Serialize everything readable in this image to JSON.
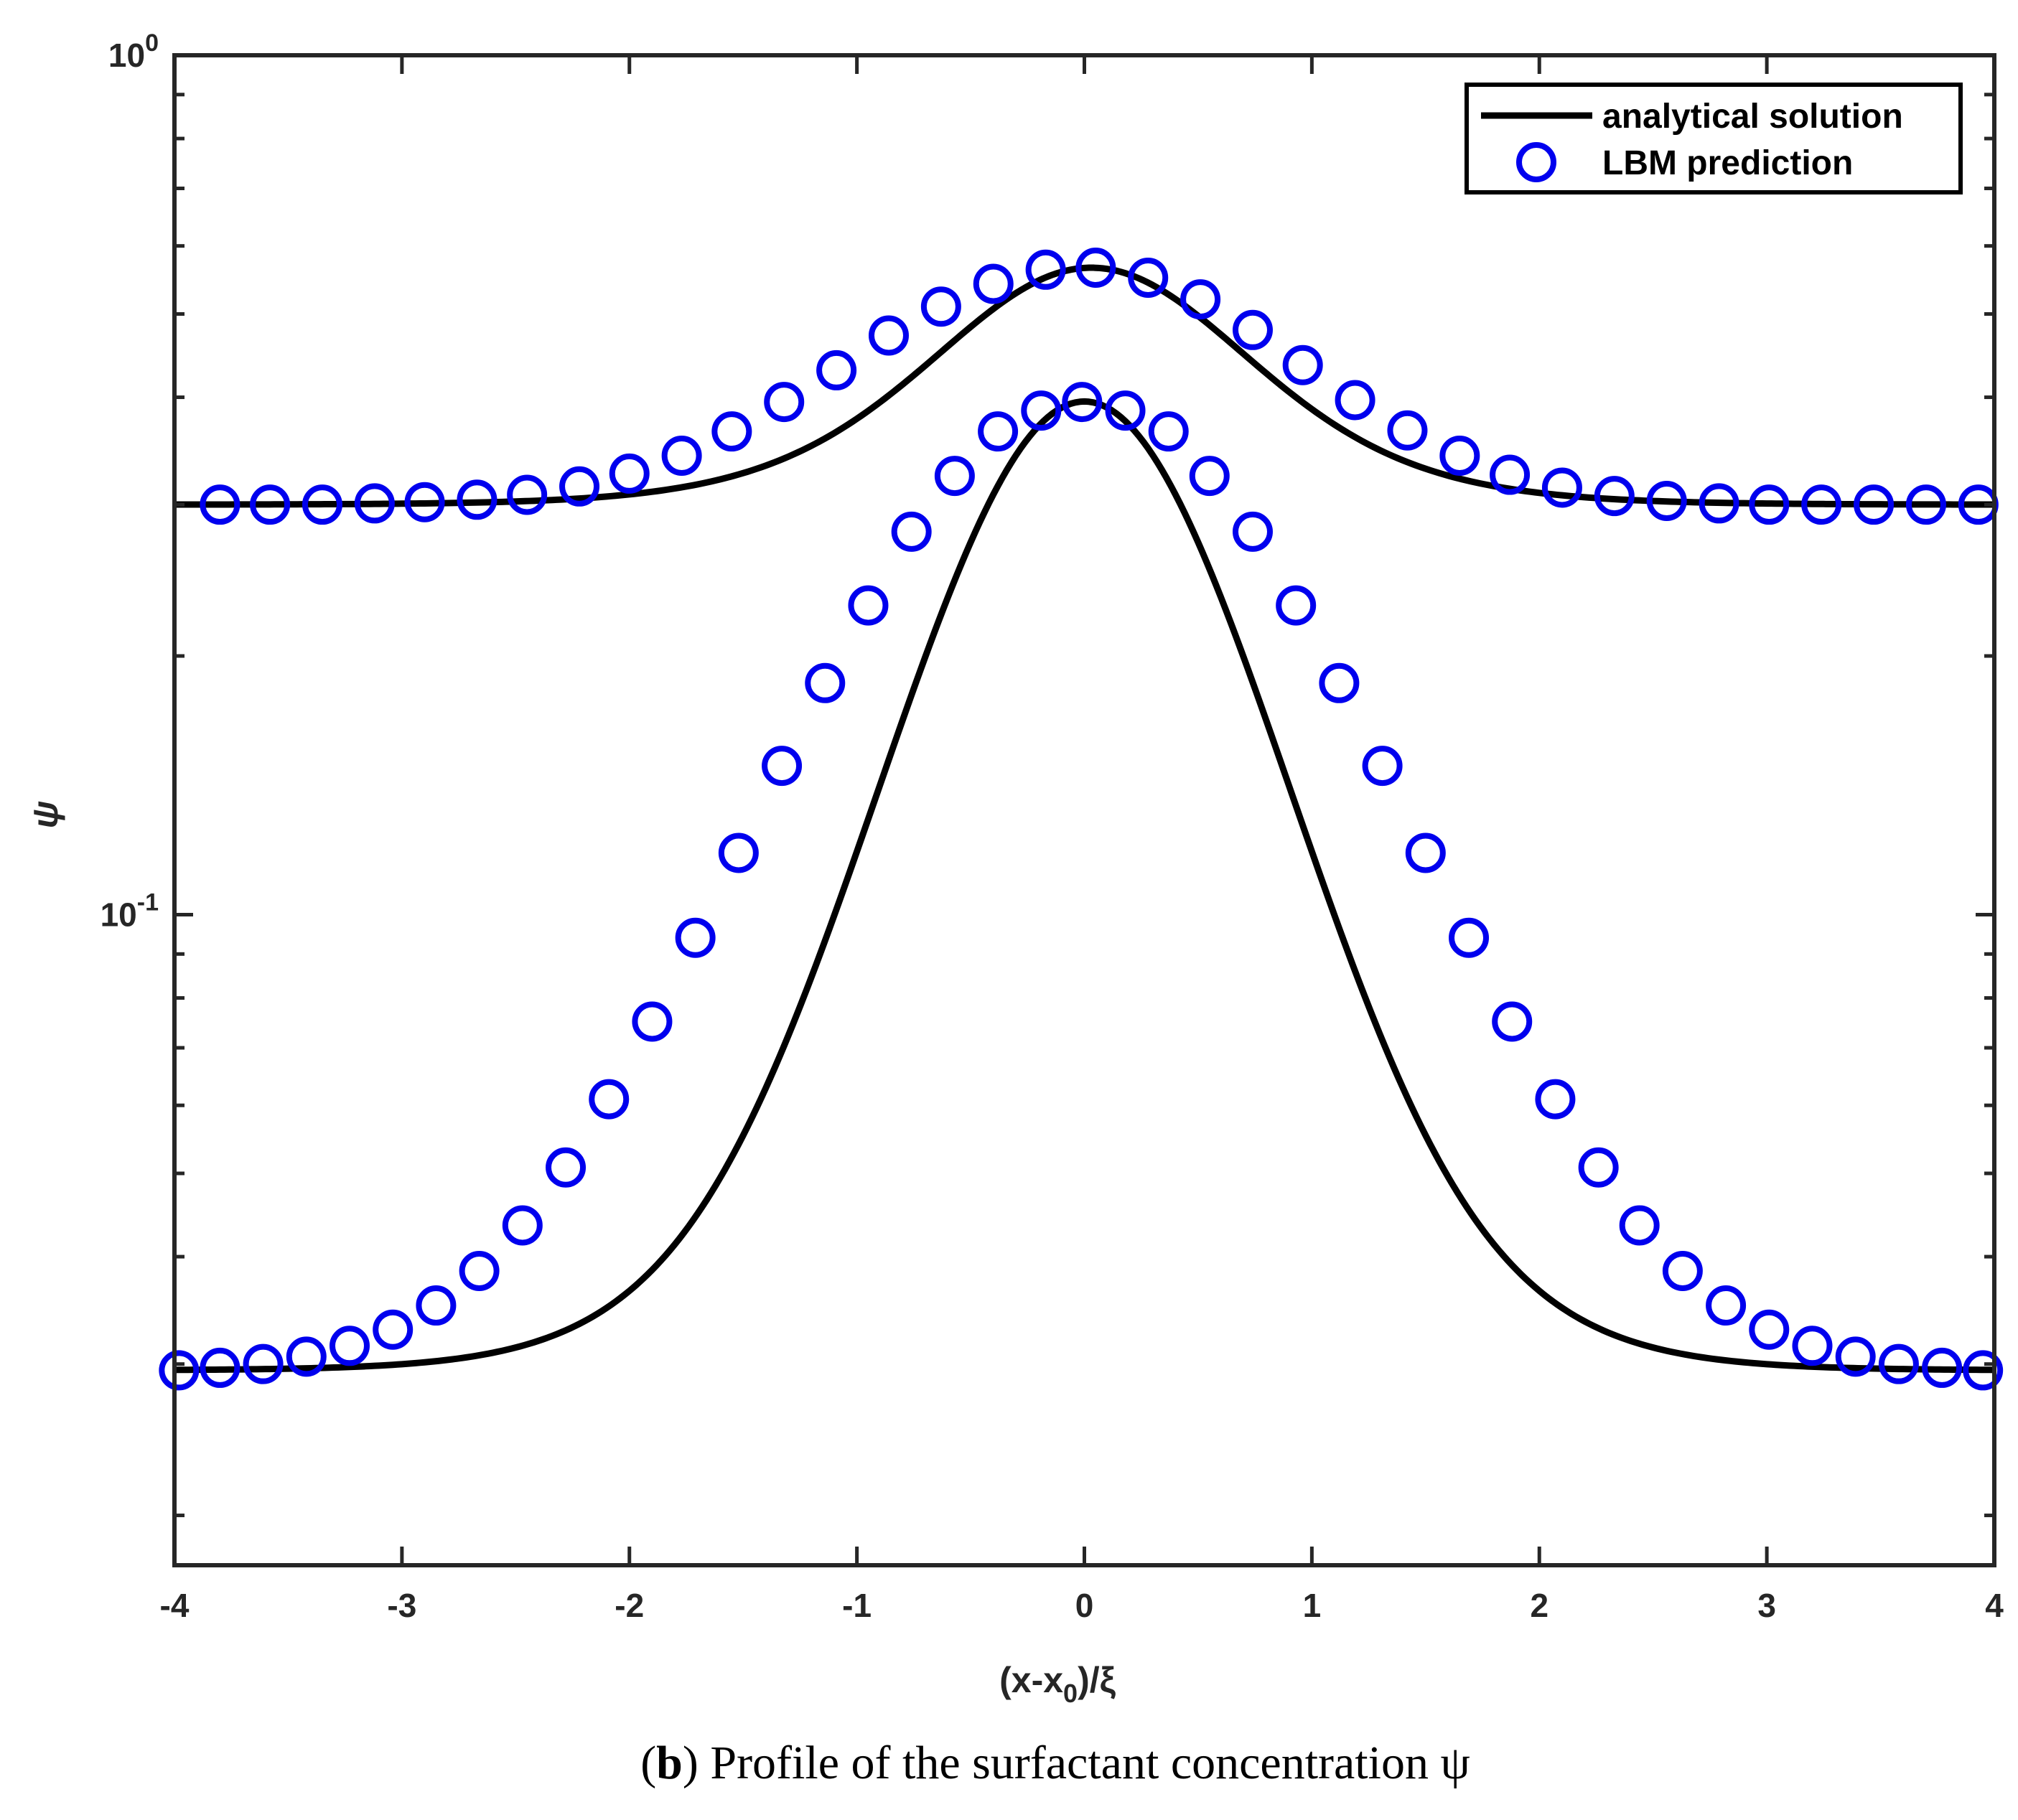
{
  "chart_data": {
    "type": "line",
    "title": "",
    "xlabel": "(x-x0)/ξ",
    "xlabel_parts": {
      "open": "(x-x",
      "sub": "0",
      "close": ")/ξ"
    },
    "ylabel": "ψ",
    "yscale": "log",
    "xlim": [
      -4,
      4
    ],
    "ylim": [
      0.0175,
      1.0
    ],
    "x_ticks": [
      -4,
      -3,
      -2,
      -1,
      0,
      1,
      2,
      3,
      4
    ],
    "x_tick_labels": [
      "-4",
      "-3",
      "-2",
      "-1",
      "0",
      "1",
      "2",
      "3",
      "4"
    ],
    "y_ticks": [
      {
        "value": 0.1,
        "base": "10",
        "exp": "-1"
      },
      {
        "value": 1.0,
        "base": "10",
        "exp": "0"
      }
    ],
    "legend": {
      "position": "top-right",
      "entries": [
        {
          "label": "analytical solution",
          "style": "line",
          "color": "#000000"
        },
        {
          "label": "LBM prediction",
          "style": "circle",
          "color": "#0000ee"
        }
      ]
    },
    "curves": [
      {
        "name": "analytical solution (upper)",
        "center": 0.03,
        "baseline": 0.3,
        "peak": 0.566,
        "width": 0.84
      },
      {
        "name": "analytical solution (lower)",
        "center": 0.0,
        "baseline": 0.0295,
        "peak": 0.3955,
        "width": 0.75
      }
    ],
    "series": [
      {
        "name": "LBM prediction (upper)",
        "x": [
          -3.8,
          -3.58,
          -3.35,
          -3.12,
          -2.9,
          -2.67,
          -2.45,
          -2.22,
          -2.0,
          -1.77,
          -1.55,
          -1.32,
          -1.09,
          -0.86,
          -0.63,
          -0.4,
          -0.17,
          0.05,
          0.28,
          0.51,
          0.74,
          0.96,
          1.19,
          1.42,
          1.65,
          1.87,
          2.1,
          2.33,
          2.56,
          2.79,
          3.01,
          3.24,
          3.47,
          3.7,
          3.93
        ],
        "y": [
          0.3,
          0.3,
          0.3,
          0.301,
          0.302,
          0.304,
          0.308,
          0.315,
          0.326,
          0.342,
          0.365,
          0.395,
          0.43,
          0.472,
          0.51,
          0.542,
          0.563,
          0.566,
          0.551,
          0.52,
          0.479,
          0.436,
          0.397,
          0.366,
          0.342,
          0.325,
          0.314,
          0.307,
          0.303,
          0.301,
          0.3,
          0.3,
          0.3,
          0.3,
          0.3
        ]
      },
      {
        "name": "LBM prediction (lower)",
        "x": [
          -3.98,
          -3.8,
          -3.61,
          -3.42,
          -3.23,
          -3.04,
          -2.85,
          -2.66,
          -2.47,
          -2.28,
          -2.09,
          -1.9,
          -1.71,
          -1.52,
          -1.33,
          -1.14,
          -0.95,
          -0.76,
          -0.57,
          -0.38,
          -0.19,
          -0.01,
          0.18,
          0.37,
          0.55,
          0.74,
          0.93,
          1.12,
          1.31,
          1.5,
          1.69,
          1.88,
          2.07,
          2.26,
          2.44,
          2.63,
          2.82,
          3.01,
          3.2,
          3.39,
          3.58,
          3.77,
          3.95
        ],
        "y": [
          0.0295,
          0.0297,
          0.03,
          0.0306,
          0.0315,
          0.0329,
          0.0351,
          0.0385,
          0.0435,
          0.0508,
          0.061,
          0.0751,
          0.094,
          0.118,
          0.149,
          0.186,
          0.229,
          0.279,
          0.324,
          0.365,
          0.386,
          0.395,
          0.386,
          0.365,
          0.324,
          0.279,
          0.229,
          0.186,
          0.149,
          0.118,
          0.094,
          0.0751,
          0.061,
          0.0508,
          0.0435,
          0.0385,
          0.0351,
          0.0329,
          0.0315,
          0.0306,
          0.03,
          0.0297,
          0.0295
        ]
      }
    ]
  },
  "caption": {
    "open": "(",
    "bold": "b",
    "close": ")",
    "text": " Profile of the surfactant concentration ψ"
  },
  "colors": {
    "line": "#000000",
    "marker": "#0000ee",
    "axes": "#262626"
  }
}
